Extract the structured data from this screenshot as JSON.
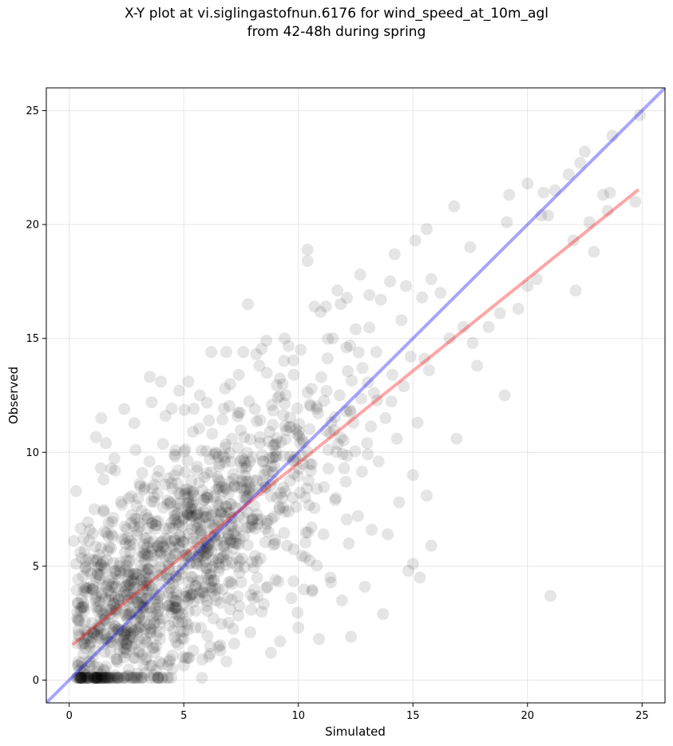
{
  "chart_data": {
    "type": "scatter",
    "title_lines": [
      "X-Y plot at vi.siglingastofnun.6176 for wind_speed_at_10m_agl",
      "from 42-48h during spring"
    ],
    "xlabel": "Simulated",
    "ylabel": "Observed",
    "xlim": [
      -1,
      26
    ],
    "ylim": [
      -1,
      26
    ],
    "xticks": [
      0,
      5,
      10,
      15,
      20,
      25
    ],
    "yticks": [
      0,
      5,
      10,
      15,
      20,
      25
    ],
    "grid": true,
    "point_color": "#000000",
    "point_opacity": 0.1,
    "points": [
      [
        0.2,
        6.1
      ],
      [
        0.3,
        8.3
      ],
      [
        0.3,
        5.1
      ],
      [
        0.4,
        2.0
      ],
      [
        0.4,
        0.8
      ],
      [
        0.6,
        3.2
      ],
      [
        0.7,
        1.4
      ],
      [
        0.8,
        4.8
      ],
      [
        0.9,
        6.6
      ],
      [
        1.0,
        2.5
      ],
      [
        1.1,
        7.5
      ],
      [
        1.1,
        0.6
      ],
      [
        1.2,
        3.7
      ],
      [
        1.3,
        5.5
      ],
      [
        1.4,
        11.5
      ],
      [
        1.5,
        2.0
      ],
      [
        1.5,
        8.8
      ],
      [
        1.6,
        10.4
      ],
      [
        1.7,
        4.2
      ],
      [
        1.8,
        1.2
      ],
      [
        1.9,
        6.3
      ],
      [
        2.0,
        9.2
      ],
      [
        2.0,
        2.9
      ],
      [
        2.1,
        0.8
      ],
      [
        2.2,
        5.0
      ],
      [
        2.3,
        7.7
      ],
      [
        2.4,
        11.9
      ],
      [
        2.4,
        3.3
      ],
      [
        2.5,
        1.6
      ],
      [
        2.6,
        0.2
      ],
      [
        2.7,
        6.9
      ],
      [
        2.8,
        4.4
      ],
      [
        2.9,
        10.1
      ],
      [
        3.0,
        2.1
      ],
      [
        3.1,
        8.5
      ],
      [
        3.2,
        5.6
      ],
      [
        3.3,
        0.3
      ],
      [
        3.4,
        3.6
      ],
      [
        3.5,
        9.6
      ],
      [
        3.6,
        12.2
      ],
      [
        3.7,
        1.4
      ],
      [
        3.8,
        6.8
      ],
      [
        3.9,
        4.6
      ],
      [
        4.0,
        13.1
      ],
      [
        4.1,
        2.7
      ],
      [
        4.2,
        11.6
      ],
      [
        4.3,
        7.9
      ],
      [
        4.4,
        0.9
      ],
      [
        4.5,
        5.3
      ],
      [
        4.6,
        9.9
      ],
      [
        4.7,
        3.2
      ],
      [
        4.8,
        12.7
      ],
      [
        4.9,
        6.1
      ],
      [
        5.0,
        1.8
      ],
      [
        5.1,
        8.2
      ],
      [
        5.2,
        13.1
      ],
      [
        5.3,
        4.0
      ],
      [
        5.4,
        10.9
      ],
      [
        5.5,
        2.3
      ],
      [
        5.6,
        6.7
      ],
      [
        5.7,
        12.5
      ],
      [
        5.8,
        0.9
      ],
      [
        5.9,
        8.9
      ],
      [
        6.0,
        4.9
      ],
      [
        6.1,
        11.4
      ],
      [
        6.2,
        14.4
      ],
      [
        6.3,
        2.7
      ],
      [
        6.4,
        7.3
      ],
      [
        6.5,
        9.8
      ],
      [
        6.6,
        1.3
      ],
      [
        6.7,
        5.4
      ],
      [
        6.8,
        12.8
      ],
      [
        6.9,
        3.6
      ],
      [
        7.0,
        8.7
      ],
      [
        7.1,
        10.6
      ],
      [
        7.2,
        1.6
      ],
      [
        7.3,
        6.0
      ],
      [
        7.4,
        13.4
      ],
      [
        7.5,
        4.3
      ],
      [
        7.6,
        14.4
      ],
      [
        7.7,
        9.3
      ],
      [
        7.8,
        16.5
      ],
      [
        7.9,
        2.1
      ],
      [
        8.0,
        7.1
      ],
      [
        8.1,
        11.9
      ],
      [
        8.2,
        5.2
      ],
      [
        8.3,
        13.8
      ],
      [
        8.4,
        3.0
      ],
      [
        8.5,
        9.0
      ],
      [
        8.6,
        14.9
      ],
      [
        8.7,
        6.5
      ],
      [
        8.8,
        1.2
      ],
      [
        8.9,
        10.3
      ],
      [
        9.0,
        4.4
      ],
      [
        9.1,
        12.4
      ],
      [
        9.2,
        1.7
      ],
      [
        9.3,
        8.0
      ],
      [
        9.4,
        15.0
      ],
      [
        9.5,
        5.9
      ],
      [
        9.6,
        11.1
      ],
      [
        9.7,
        3.6
      ],
      [
        9.8,
        13.4
      ],
      [
        9.9,
        7.6
      ],
      [
        10.0,
        2.3
      ],
      [
        10.1,
        14.5
      ],
      [
        10.2,
        9.5
      ],
      [
        10.3,
        5.4
      ],
      [
        10.4,
        18.4
      ],
      [
        10.4,
        18.9
      ],
      [
        10.5,
        12.1
      ],
      [
        10.6,
        3.9
      ],
      [
        10.7,
        16.4
      ],
      [
        10.8,
        8.4
      ],
      [
        10.9,
        1.8
      ],
      [
        11.0,
        13.3
      ],
      [
        11.1,
        6.4
      ],
      [
        11.2,
        16.4
      ],
      [
        11.3,
        10.1
      ],
      [
        11.4,
        4.5
      ],
      [
        11.5,
        15.0
      ],
      [
        11.6,
        7.9
      ],
      [
        11.7,
        17.1
      ],
      [
        11.8,
        12.5
      ],
      [
        11.9,
        3.5
      ],
      [
        12.0,
        9.3
      ],
      [
        12.1,
        14.6
      ],
      [
        12.2,
        6.0
      ],
      [
        12.3,
        1.9
      ],
      [
        12.4,
        11.3
      ],
      [
        12.5,
        15.4
      ],
      [
        12.6,
        7.2
      ],
      [
        12.7,
        17.8
      ],
      [
        12.8,
        13.7
      ],
      [
        12.9,
        4.1
      ],
      [
        13.0,
        10.4
      ],
      [
        13.1,
        16.9
      ],
      [
        13.2,
        6.6
      ],
      [
        13.3,
        12.6
      ],
      [
        13.4,
        14.4
      ],
      [
        13.5,
        9.6
      ],
      [
        13.6,
        16.7
      ],
      [
        13.7,
        2.9
      ],
      [
        13.8,
        11.5
      ],
      [
        13.9,
        6.4
      ],
      [
        14.0,
        17.5
      ],
      [
        14.1,
        13.4
      ],
      [
        14.2,
        18.7
      ],
      [
        14.3,
        10.6
      ],
      [
        14.4,
        7.8
      ],
      [
        14.5,
        15.8
      ],
      [
        14.6,
        12.9
      ],
      [
        14.7,
        17.3
      ],
      [
        14.8,
        4.8
      ],
      [
        14.9,
        14.2
      ],
      [
        15.0,
        5.1
      ],
      [
        15.0,
        9.0
      ],
      [
        15.1,
        19.3
      ],
      [
        15.2,
        11.3
      ],
      [
        15.3,
        4.5
      ],
      [
        15.4,
        16.8
      ],
      [
        15.5,
        14.1
      ],
      [
        15.6,
        19.8
      ],
      [
        15.6,
        8.1
      ],
      [
        15.7,
        13.6
      ],
      [
        15.8,
        17.6
      ],
      [
        15.8,
        5.9
      ],
      [
        16.2,
        17.0
      ],
      [
        16.6,
        15.0
      ],
      [
        16.8,
        20.8
      ],
      [
        16.9,
        10.6
      ],
      [
        17.2,
        15.5
      ],
      [
        17.5,
        19.0
      ],
      [
        17.6,
        14.8
      ],
      [
        17.8,
        13.8
      ],
      [
        18.3,
        15.5
      ],
      [
        18.8,
        16.1
      ],
      [
        19.0,
        12.5
      ],
      [
        19.1,
        20.1
      ],
      [
        19.2,
        21.3
      ],
      [
        19.6,
        16.3
      ],
      [
        20.0,
        21.8
      ],
      [
        20.0,
        17.3
      ],
      [
        20.4,
        17.6
      ],
      [
        20.6,
        20.4
      ],
      [
        20.7,
        21.4
      ],
      [
        20.9,
        20.4
      ],
      [
        21.0,
        3.7
      ],
      [
        21.2,
        21.5
      ],
      [
        21.8,
        22.2
      ],
      [
        22.0,
        19.3
      ],
      [
        22.1,
        17.1
      ],
      [
        22.3,
        22.7
      ],
      [
        22.5,
        23.2
      ],
      [
        22.7,
        20.1
      ],
      [
        22.9,
        18.8
      ],
      [
        23.3,
        21.3
      ],
      [
        23.5,
        20.6
      ],
      [
        23.6,
        21.4
      ],
      [
        23.7,
        23.9
      ],
      [
        24.7,
        21.0
      ],
      [
        24.9,
        24.8
      ]
    ],
    "cluster": {
      "center": [
        4.2,
        4.6
      ],
      "spread": [
        2.6,
        2.6
      ],
      "count": 1150,
      "seed": 6176
    },
    "lines": [
      {
        "role": "one-to-one",
        "color": "#0000ff",
        "opacity": 0.35,
        "x": [
          -1,
          26
        ],
        "y": [
          -1,
          26
        ]
      },
      {
        "role": "regression",
        "color": "#ff0000",
        "opacity": 0.35,
        "x": [
          0.2,
          24.8
        ],
        "y": [
          1.6,
          21.5
        ]
      }
    ]
  }
}
